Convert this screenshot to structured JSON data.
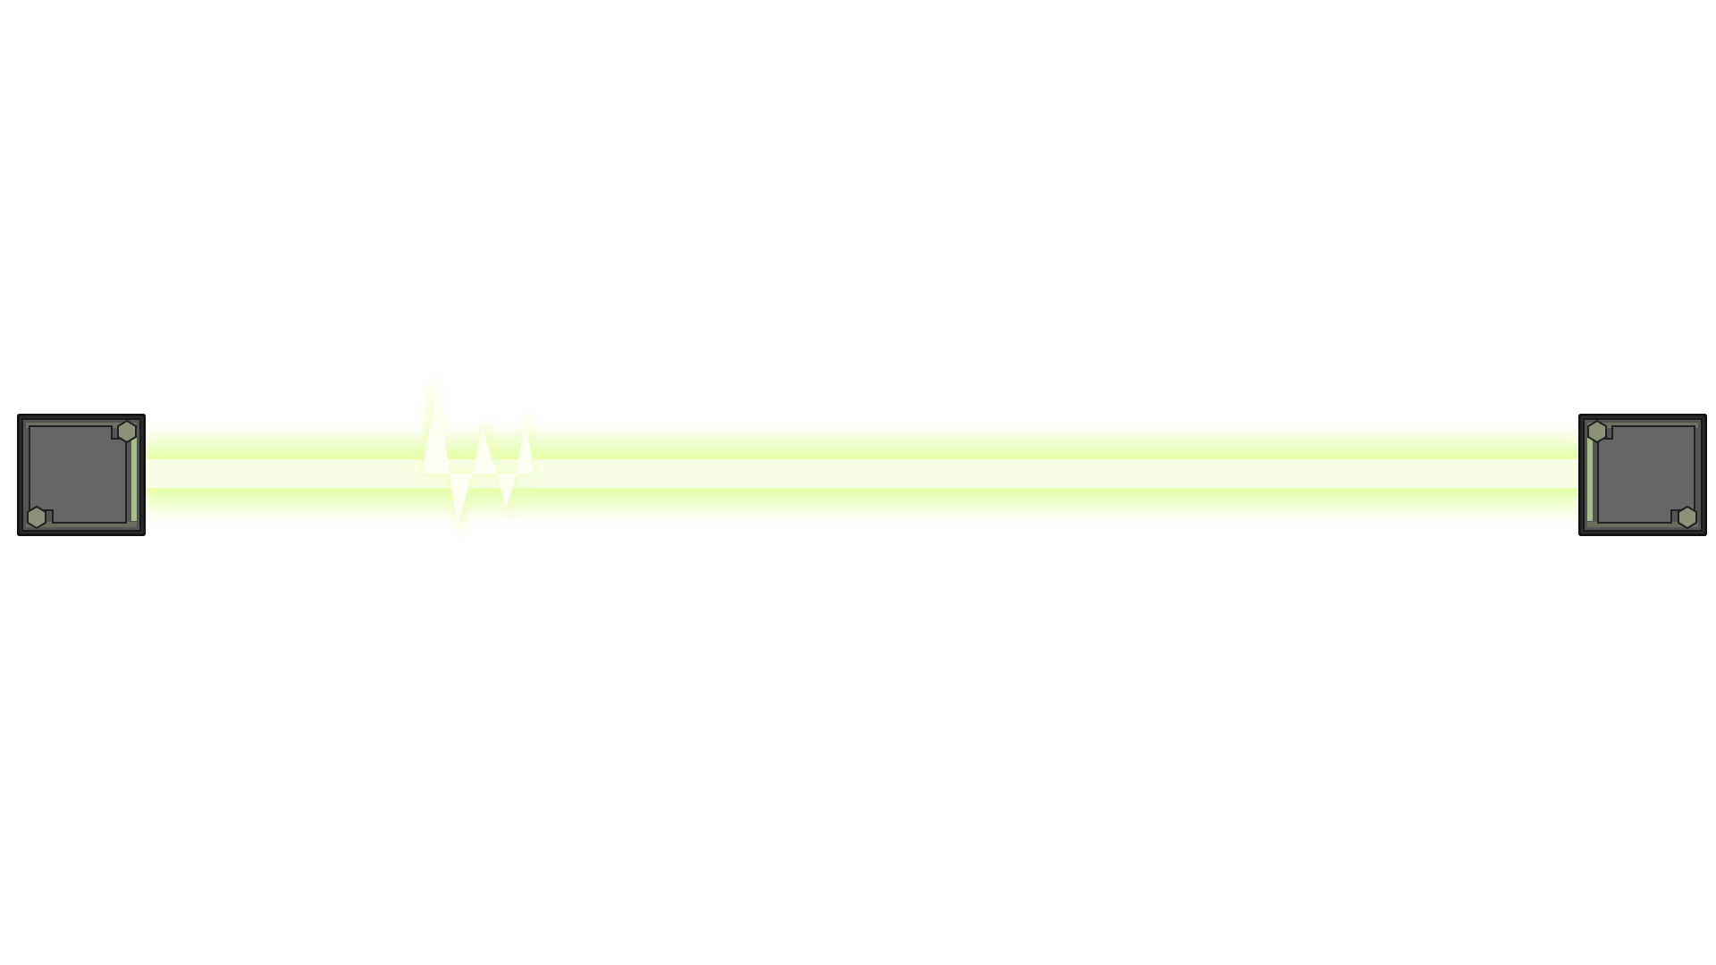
{
  "scene": {
    "type": "laser-barrier",
    "background_color": "#ffffff",
    "beam": {
      "color": "#e6ffb0",
      "glow_color": "#c8ff5a",
      "core_color": "#fbffee",
      "has_pulse": true
    },
    "emitters": [
      {
        "side": "left",
        "body_color": "#5a5a5a",
        "frame_color": "#2a2a2a",
        "bolt_color": "#8a8f7a"
      },
      {
        "side": "right",
        "body_color": "#5a5a5a",
        "frame_color": "#2a2a2a",
        "bolt_color": "#8a8f7a"
      }
    ]
  }
}
